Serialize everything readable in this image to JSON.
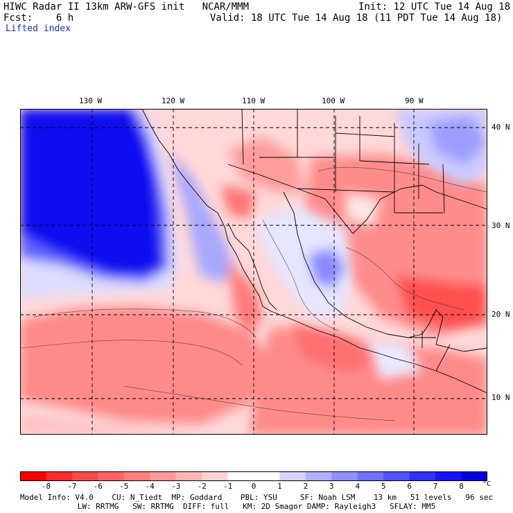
{
  "header": {
    "title_left": "HIWC Radar II 13km ARW-GFS init   NCAR/MMM",
    "fcst": "Fcst:    6 h",
    "init": "Init: 12 UTC Tue 14 Aug 18",
    "valid": "Valid: 18 UTC Tue 14 Aug 18 (11 PDT Tue 14 Aug 18)",
    "field": "Lifted index"
  },
  "map": {
    "longitude_labels": [
      "130 W",
      "120 W",
      "110 W",
      "100 W",
      "90 W"
    ],
    "latitude_labels": [
      "40 N",
      "30 N",
      "20 N",
      "10 N"
    ]
  },
  "colorbar": {
    "ticks": [
      "-8",
      "-7",
      "-6",
      "-5",
      "-4",
      "-3",
      "-2",
      "-1",
      "0",
      "1",
      "2",
      "3",
      "4",
      "5",
      "6",
      "7",
      "8"
    ],
    "unit": "°C",
    "colors": [
      "#ff0000",
      "#ff2b2b",
      "#ff4a4a",
      "#ff6464",
      "#ff7f7f",
      "#ff9999",
      "#ffb4b4",
      "#ffd2d2",
      "#ffffff",
      "#ffffff",
      "#d4d4ff",
      "#b0b0ff",
      "#9090ff",
      "#7070ff",
      "#5050ff",
      "#3030ff",
      "#1414ff",
      "#0000e0"
    ]
  },
  "footer": {
    "line1": "Model Info: V4.0    CU: N_Tiedt  MP: Goddard    PBL: YSU     SF: Noah LSM    13 km   51 levels   96 sec",
    "line2": "LW: RRTMG   SW: RRTMG  DIFF: full   KM: 2D Smagor DAMP: Rayleigh3   SFLAY: MM5"
  }
}
